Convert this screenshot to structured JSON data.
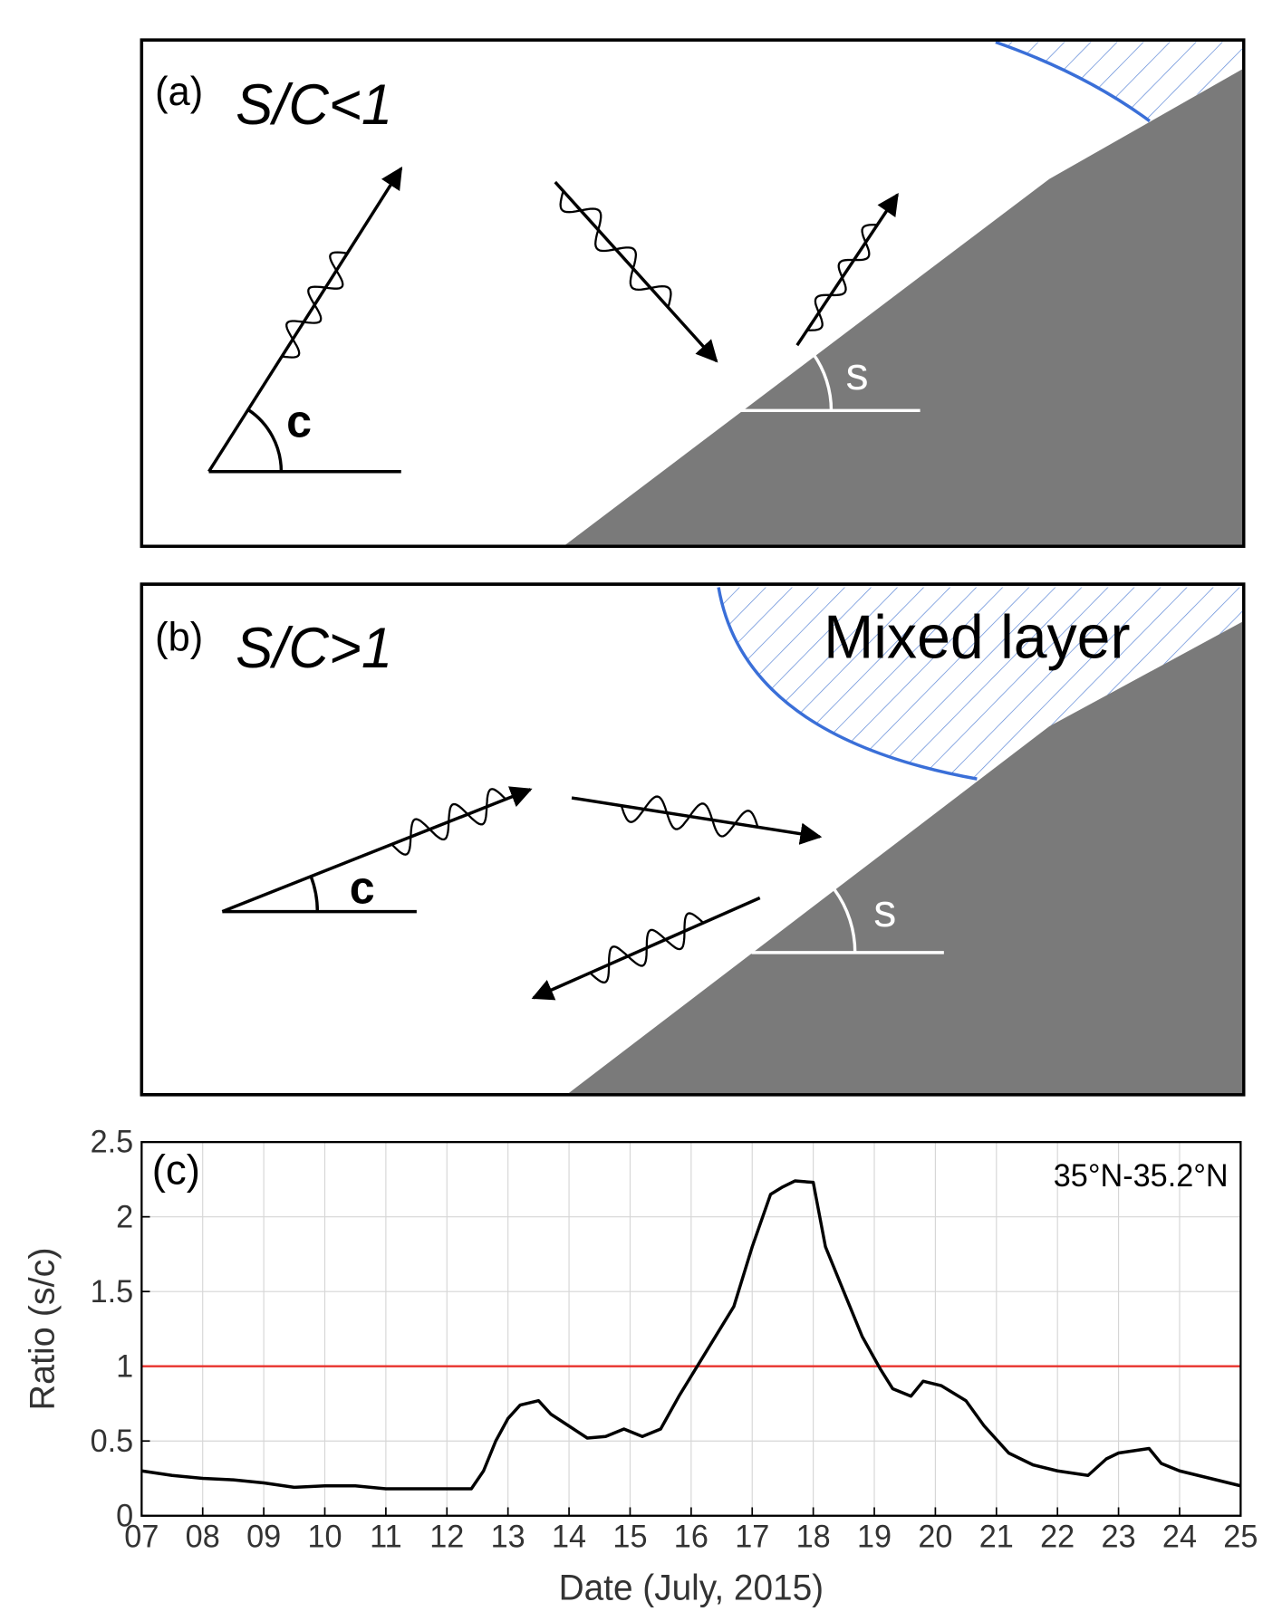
{
  "panels": [
    {
      "label": "(a)",
      "title": "S/C<1",
      "angle_c": "c",
      "angle_s": "s"
    },
    {
      "label": "(b)",
      "title": "S/C>1",
      "angle_c": "c",
      "angle_s": "s",
      "region": "Mixed layer"
    }
  ],
  "chart_data": {
    "type": "line",
    "panel_label": "(c)",
    "annotation": "35°N-35.2°N",
    "xlabel": "Date (July, 2015)",
    "ylabel": "Ratio (s/c)",
    "xlim": [
      7,
      25
    ],
    "xticks": [
      {
        "value": 7,
        "label": "07"
      },
      {
        "value": 8,
        "label": "08"
      },
      {
        "value": 9,
        "label": "09"
      },
      10,
      11,
      12,
      13,
      14,
      15,
      16,
      17,
      18,
      19,
      20,
      21,
      22,
      23,
      24,
      25
    ],
    "ylim": [
      0,
      2.5
    ],
    "yticks": [
      0,
      0.5,
      1,
      1.5,
      2,
      2.5
    ],
    "grid": true,
    "hlines": [
      {
        "value": 1,
        "color": "#e8322d"
      }
    ],
    "series": [
      {
        "color": "#000000",
        "x": [
          7,
          7.5,
          8,
          8.5,
          9,
          9.5,
          10,
          10.5,
          11,
          11.5,
          12,
          12.4,
          12.6,
          12.8,
          13,
          13.2,
          13.5,
          13.7,
          14,
          14.3,
          14.6,
          14.9,
          15.2,
          15.5,
          15.8,
          16.1,
          16.4,
          16.7,
          17,
          17.3,
          17.5,
          17.7,
          18,
          18.2,
          18.5,
          18.8,
          19.1,
          19.3,
          19.6,
          19.8,
          20.1,
          20.5,
          20.8,
          21.2,
          21.6,
          22,
          22.5,
          22.8,
          23,
          23.5,
          23.7,
          24,
          24.5,
          25
        ],
        "values": [
          0.3,
          0.27,
          0.25,
          0.24,
          0.22,
          0.19,
          0.2,
          0.2,
          0.18,
          0.18,
          0.18,
          0.18,
          0.3,
          0.5,
          0.65,
          0.74,
          0.77,
          0.68,
          0.6,
          0.52,
          0.53,
          0.58,
          0.53,
          0.58,
          0.8,
          1.0,
          1.2,
          1.4,
          1.8,
          2.15,
          2.2,
          2.24,
          2.23,
          1.8,
          1.5,
          1.2,
          0.98,
          0.85,
          0.8,
          0.9,
          0.87,
          0.77,
          0.6,
          0.42,
          0.34,
          0.3,
          0.27,
          0.38,
          0.42,
          0.45,
          0.35,
          0.3,
          0.25,
          0.2
        ]
      }
    ]
  }
}
